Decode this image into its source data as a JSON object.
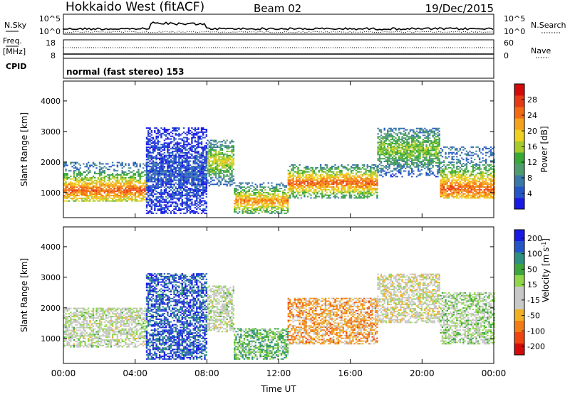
{
  "header": {
    "title": "Hokkaido West (fitACF)",
    "beam": "Beam 02",
    "date": "19/Dec/2015"
  },
  "nsky_panel": {
    "left_label": "N.Sky",
    "right_label": "N.Search",
    "left_ticks": [
      "10^5",
      "10^0"
    ],
    "right_ticks": [
      "10^5",
      "10^0"
    ]
  },
  "freq_panel": {
    "left_label_1": "Freq.",
    "left_label_2": "[MHz]",
    "right_label": "Nave",
    "left_ticks": [
      "18",
      "8"
    ],
    "right_ticks": [
      "60",
      "0"
    ]
  },
  "cpid_panel": {
    "label": "CPID",
    "text": "normal (fast stereo) 153"
  },
  "colors": {
    "axis": "#000000",
    "power_scale": [
      "#1a1ae6",
      "#2456c8",
      "#3a78a8",
      "#4f9b6e",
      "#38a836",
      "#a6cc2c",
      "#f0d020",
      "#f4a21c",
      "#f46a14",
      "#e63a14",
      "#d40a0a"
    ],
    "velocity_scale": [
      "#1a1ae6",
      "#2456c8",
      "#2d8f7f",
      "#3ca63c",
      "#8fd648",
      "#c8c8c8",
      "#c8c8c8",
      "#f0b020",
      "#f47c14",
      "#f04410",
      "#d40a0a"
    ]
  },
  "chart_data": [
    {
      "type": "heatmap",
      "title": "",
      "quantity": "Power",
      "xlabel": "",
      "ylabel": "Slant Range [km]",
      "x_ticks": [
        "00:00",
        "04:00",
        "08:00",
        "12:00",
        "16:00",
        "20:00",
        "00:00"
      ],
      "xlim_hours": [
        0,
        24
      ],
      "y_ticks": [
        1000,
        2000,
        3000,
        4000
      ],
      "ylim": [
        180,
        4650
      ],
      "colorbar": {
        "label": "Power [dB]",
        "ticks": [
          4,
          8,
          12,
          16,
          20,
          24,
          28
        ],
        "range": [
          0,
          32
        ]
      },
      "features": [
        {
          "hours": [
            0,
            4.6
          ],
          "range_km": [
            700,
            2000
          ],
          "peak_range_km": 1050,
          "peak_db": 26
        },
        {
          "hours": [
            4.6,
            8.0
          ],
          "range_km": [
            300,
            3100
          ],
          "peak_range_km": 1600,
          "peak_db": 5
        },
        {
          "hours": [
            8.0,
            9.5
          ],
          "range_km": [
            1200,
            2700
          ],
          "peak_range_km": 2000,
          "peak_db": 18
        },
        {
          "hours": [
            9.5,
            12.5
          ],
          "range_km": [
            300,
            1300
          ],
          "peak_range_km": 700,
          "peak_db": 24
        },
        {
          "hours": [
            12.5,
            17.5
          ],
          "range_km": [
            800,
            1900
          ],
          "peak_range_km": 1300,
          "peak_db": 26
        },
        {
          "hours": [
            17.5,
            21.0
          ],
          "range_km": [
            1500,
            3100
          ],
          "peak_range_km": 2400,
          "peak_db": 16
        },
        {
          "hours": [
            21.0,
            24.0
          ],
          "range_km": [
            800,
            2500
          ],
          "peak_range_km": 1100,
          "peak_db": 26
        }
      ]
    },
    {
      "type": "heatmap",
      "title": "",
      "quantity": "Velocity",
      "xlabel": "Time UT",
      "ylabel": "Slant Range [km]",
      "x_ticks": [
        "00:00",
        "04:00",
        "08:00",
        "12:00",
        "16:00",
        "20:00",
        "00:00"
      ],
      "xlim_hours": [
        0,
        24
      ],
      "y_ticks": [
        1000,
        2000,
        3000,
        4000
      ],
      "ylim": [
        180,
        4650
      ],
      "colorbar": {
        "label": "Velocity [m s^-1]",
        "tick_labels": [
          "200",
          "100",
          "50",
          "15",
          "-15",
          "-50",
          "-100",
          "-200"
        ]
      },
      "features": [
        {
          "hours": [
            0,
            4.6
          ],
          "range_km": [
            700,
            2000
          ],
          "velocity_ms": 0
        },
        {
          "hours": [
            4.6,
            8.0
          ],
          "range_km": [
            300,
            3100
          ],
          "velocity_ms": 150
        },
        {
          "hours": [
            8.0,
            9.5
          ],
          "range_km": [
            1200,
            2700
          ],
          "velocity_ms": 0
        },
        {
          "hours": [
            9.5,
            12.5
          ],
          "range_km": [
            300,
            1300
          ],
          "velocity_ms": 60
        },
        {
          "hours": [
            12.5,
            17.5
          ],
          "range_km": [
            800,
            2300
          ],
          "velocity_ms": -80
        },
        {
          "hours": [
            17.5,
            21.0
          ],
          "range_km": [
            1500,
            3100
          ],
          "velocity_ms": -20
        },
        {
          "hours": [
            21.0,
            24.0
          ],
          "range_km": [
            800,
            2500
          ],
          "velocity_ms": 20
        }
      ]
    }
  ]
}
